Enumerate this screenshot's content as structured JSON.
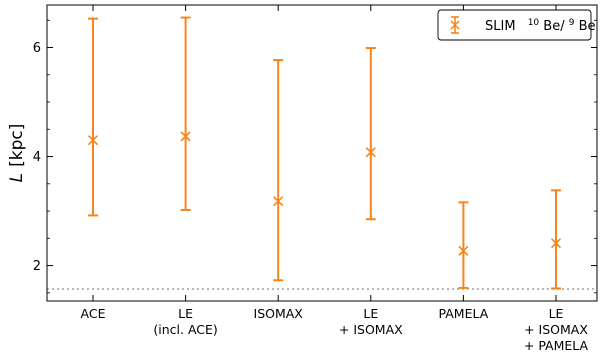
{
  "chart_data": {
    "type": "errorbar",
    "categories": [
      [
        "ACE"
      ],
      [
        "LE",
        "(incl. ACE)"
      ],
      [
        "ISOMAX"
      ],
      [
        "LE",
        "+ ISOMAX"
      ],
      [
        "PAMELA"
      ],
      [
        "LE",
        "+ ISOMAX",
        "+ PAMELA"
      ]
    ],
    "series": [
      {
        "name": "SLIM  10Be/9Be",
        "color": "#f5861f",
        "marker": "x",
        "values": [
          4.3,
          4.37,
          3.18,
          4.08,
          2.27,
          2.41
        ],
        "lower": [
          2.92,
          3.02,
          1.73,
          2.85,
          1.59,
          1.58
        ],
        "upper": [
          6.53,
          6.55,
          5.77,
          5.99,
          3.16,
          3.38
        ]
      }
    ],
    "ylabel_var": "L",
    "ylabel_unit": "[kpc]",
    "ylim": [
      1.35,
      6.78
    ],
    "yticks": [
      2,
      4,
      6
    ],
    "reference_line": {
      "y": 1.57,
      "color": "#a0a0a0",
      "style": "dotted"
    },
    "legend": {
      "position": "top-right",
      "label": "SLIM",
      "ratio_num_sup": "10",
      "ratio_num": "Be/",
      "ratio_den_sup": "9",
      "ratio_den": "Be"
    }
  }
}
